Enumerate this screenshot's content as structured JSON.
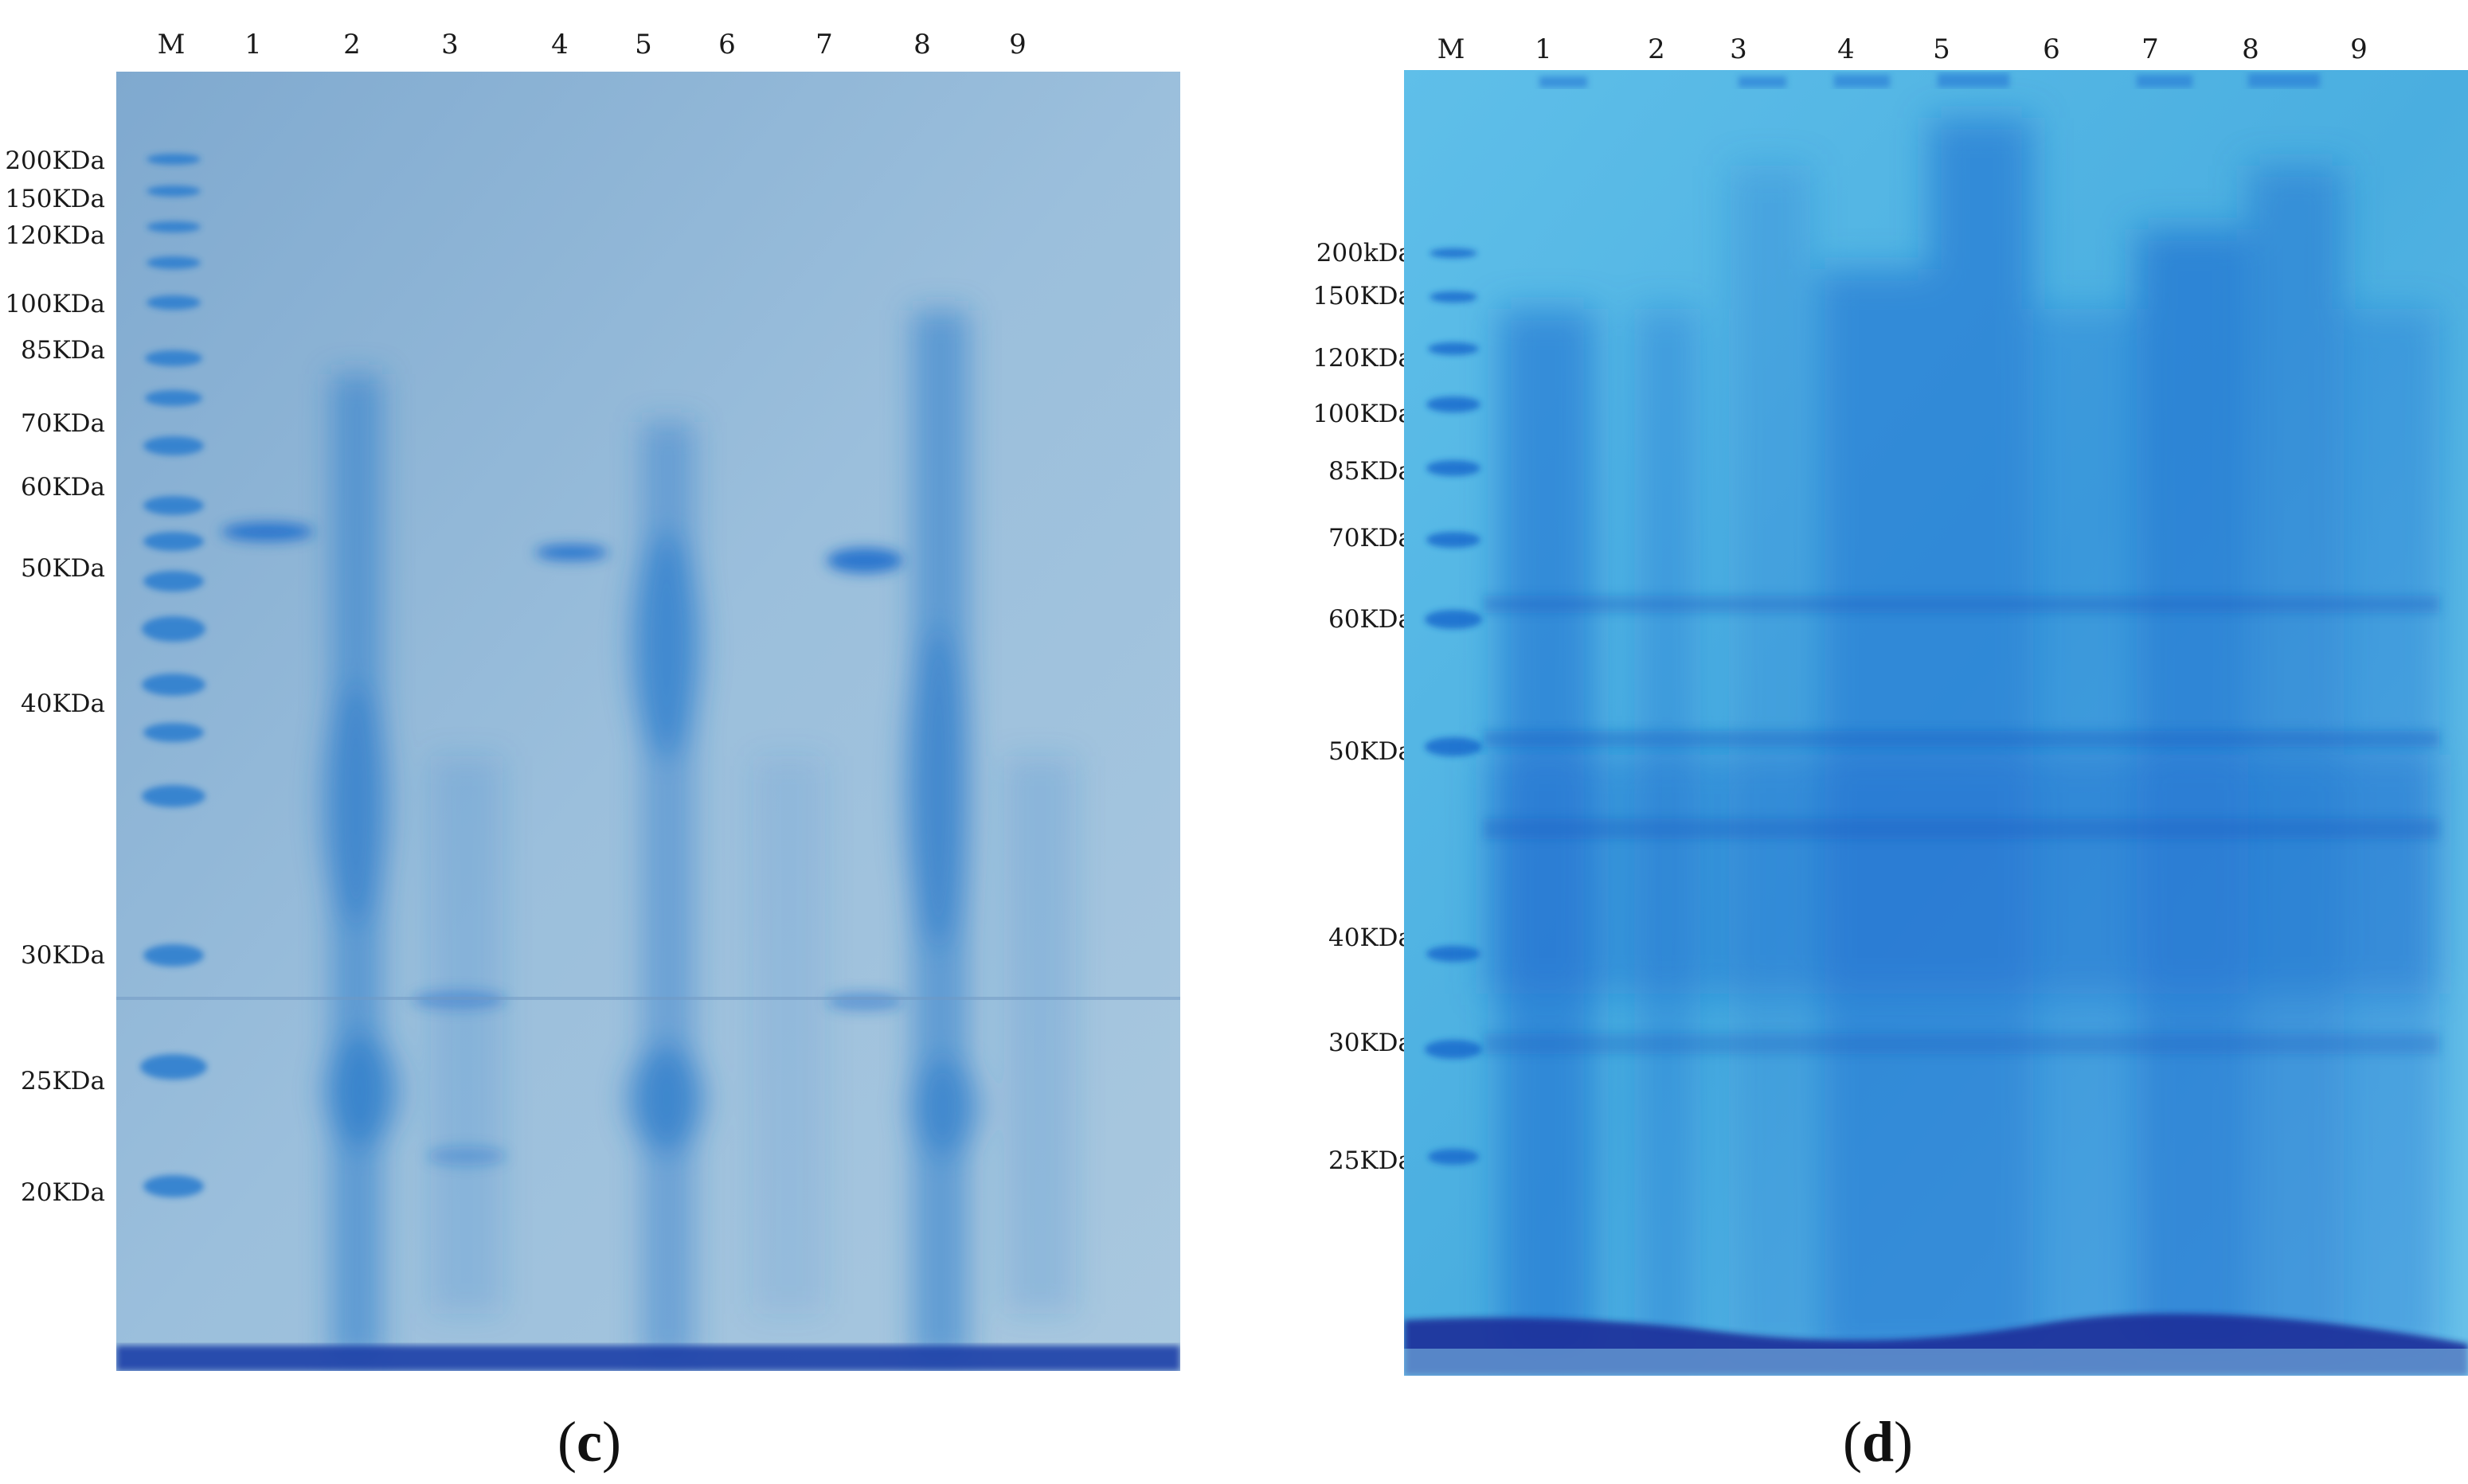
{
  "panels": [
    {
      "id": "c",
      "caption_open": "(",
      "caption_letter": "c",
      "caption_close": ")",
      "lanes": [
        "M",
        "1",
        "2",
        "3",
        "4",
        "5",
        "6",
        "7",
        "8",
        "9"
      ],
      "markers": [
        "200KDa",
        "150KDa",
        "120KDa",
        "100KDa",
        "85KDa",
        "70KDa",
        "60KDa",
        "50KDa",
        "40KDa",
        "30KDa",
        "25KDa",
        "20KDa"
      ],
      "colors": {
        "gel": "#8fb6d6",
        "band": "#2a78c8",
        "dye_front": "#1f3fa8"
      }
    },
    {
      "id": "d",
      "caption_open": "(",
      "caption_letter": "d",
      "caption_close": ")",
      "lanes": [
        "M",
        "1",
        "2",
        "3",
        "4",
        "5",
        "6",
        "7",
        "8",
        "9"
      ],
      "markers": [
        "200kDa",
        "150KDa",
        "120KDa",
        "100KDa",
        "85KDa",
        "70KDa",
        "60KDa",
        "50KDa",
        "40KDa",
        "30KDa",
        "25KDa"
      ],
      "colors": {
        "gel": "#4fb4e3",
        "band": "#1f6fd0",
        "dye_front": "#1c2f9a"
      }
    }
  ]
}
